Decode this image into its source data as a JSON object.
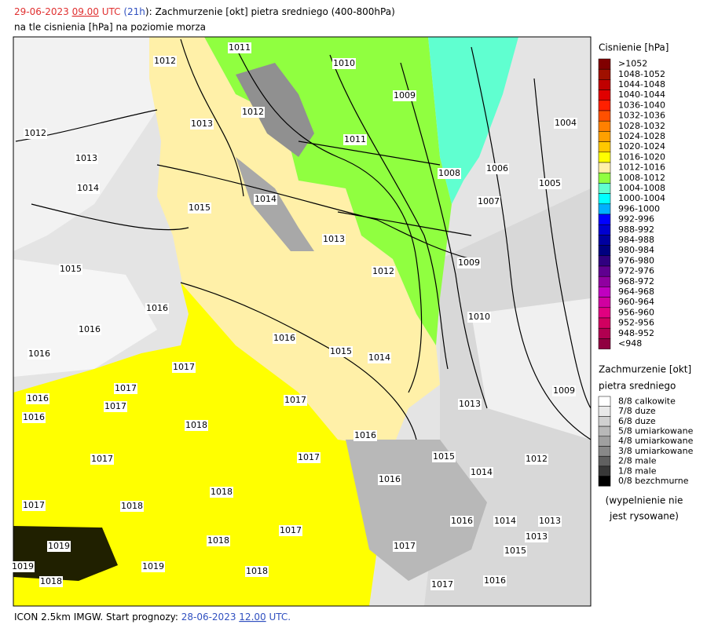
{
  "header": {
    "title_parts": [
      {
        "text": "29-06-2023 ",
        "color": "#e03030",
        "underline": false
      },
      {
        "text": "09.00",
        "color": "#e03030",
        "underline": true
      },
      {
        "text": " UTC",
        "color": "#e03030",
        "underline": false
      },
      {
        "text": " (",
        "color": "#3050c0",
        "underline": false
      },
      {
        "text": "21h",
        "color": "#3050c0",
        "underline": false
      },
      {
        "text": "): Zachmurzenie [okt] pietra sredniego (400-800hPa)",
        "color": "#000000",
        "underline": false
      }
    ],
    "subtitle": "na tle cisnienia [hPa] na poziomie morza"
  },
  "footer": {
    "parts": [
      {
        "text": "ICON 2.5km IMGW. Start prognozy: ",
        "color": "#000000",
        "underline": false
      },
      {
        "text": "28-06-2023",
        "color": "#3050c0",
        "underline": false
      },
      {
        "text": " ",
        "color": "#3050c0",
        "underline": false
      },
      {
        "text": "12.00",
        "color": "#3050c0",
        "underline": true
      },
      {
        "text": " UTC.",
        "color": "#3050c0",
        "underline": false
      }
    ]
  },
  "pressure_legend": {
    "title": "Cisnienie [hPa]",
    "entries": [
      {
        "label": ">1052",
        "color": "#800000"
      },
      {
        "label": "1048-1052",
        "color": "#a01000"
      },
      {
        "label": "1044-1048",
        "color": "#c00000"
      },
      {
        "label": "1040-1044",
        "color": "#e00000"
      },
      {
        "label": "1036-1040",
        "color": "#ff2000"
      },
      {
        "label": "1032-1036",
        "color": "#ff5000"
      },
      {
        "label": "1028-1032",
        "color": "#ff8000"
      },
      {
        "label": "1024-1028",
        "color": "#ffa000"
      },
      {
        "label": "1020-1024",
        "color": "#ffc800"
      },
      {
        "label": "1016-1020",
        "color": "#ffff00"
      },
      {
        "label": "1012-1016",
        "color": "#fff0a8"
      },
      {
        "label": "1008-1012",
        "color": "#90ff40"
      },
      {
        "label": "1004-1008",
        "color": "#60ffd0"
      },
      {
        "label": "1000-1004",
        "color": "#00ffff"
      },
      {
        "label": "996-1000",
        "color": "#00b0ff"
      },
      {
        "label": "992-996",
        "color": "#0000ff"
      },
      {
        "label": "988-992",
        "color": "#0000d0"
      },
      {
        "label": "984-988",
        "color": "#0000a0"
      },
      {
        "label": "980-984",
        "color": "#000080"
      },
      {
        "label": "976-980",
        "color": "#300080"
      },
      {
        "label": "972-976",
        "color": "#600090"
      },
      {
        "label": "968-972",
        "color": "#9000a0"
      },
      {
        "label": "964-968",
        "color": "#c000c0"
      },
      {
        "label": "960-964",
        "color": "#d000a0"
      },
      {
        "label": "956-960",
        "color": "#e00080"
      },
      {
        "label": "952-956",
        "color": "#d00060"
      },
      {
        "label": "948-952",
        "color": "#b00050"
      },
      {
        "label": "<948",
        "color": "#900040"
      }
    ]
  },
  "cloud_legend": {
    "title_lines": [
      "Zachmurzenie [okt]",
      "pietra sredniego"
    ],
    "entries": [
      {
        "label": "8/8 calkowite",
        "color": "#ffffff"
      },
      {
        "label": "7/8 duze",
        "color": "#e8e8e8"
      },
      {
        "label": "6/8 duze",
        "color": "#d0d0d0"
      },
      {
        "label": "5/8 umiarkowane",
        "color": "#b8b8b8"
      },
      {
        "label": "4/8 umiarkowane",
        "color": "#a0a0a0"
      },
      {
        "label": "3/8 umiarkowane",
        "color": "#888888"
      },
      {
        "label": "2/8 male",
        "color": "#606060"
      },
      {
        "label": "1/8 male",
        "color": "#383838"
      },
      {
        "label": "0/8 bezchmurne",
        "color": "#000000"
      }
    ],
    "note_lines": [
      "(wypelnienie nie",
      "jest rysowane)"
    ]
  },
  "map": {
    "isobar_labels": [
      "1011",
      "1010",
      "1012",
      "1009",
      "1012",
      "1013",
      "1012",
      "1011",
      "1004",
      "1013",
      "1008",
      "1006",
      "1014",
      "1005",
      "1014",
      "1007",
      "1015",
      "1013",
      "1009",
      "1012",
      "1015",
      "1016",
      "1010",
      "1016",
      "1016",
      "1015",
      "1014",
      "1016",
      "1017",
      "1017",
      "1009",
      "1016",
      "1017",
      "1017",
      "1013",
      "1016",
      "1018",
      "1016",
      "1017",
      "1017",
      "1015",
      "1012",
      "1014",
      "1016",
      "1018",
      "1017",
      "1018",
      "1016",
      "1014",
      "1013",
      "1017",
      "1013",
      "1018",
      "1019",
      "1017",
      "1015",
      "1019",
      "1019",
      "1018",
      "1017",
      "1016",
      "1018"
    ]
  }
}
